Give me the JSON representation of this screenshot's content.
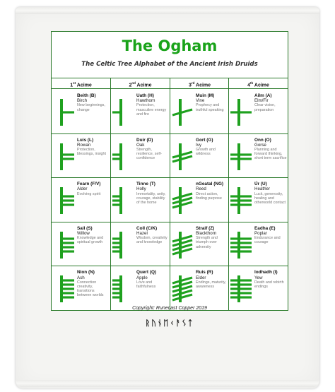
{
  "title": "The Ogham",
  "subtitle": "The Celtic Tree Alphabet of the Ancient Irish Druids",
  "headers": [
    {
      "num": "1",
      "sup": "st",
      "word": "Acime"
    },
    {
      "num": "2",
      "sup": "nd",
      "word": "Acime"
    },
    {
      "num": "3",
      "sup": "rd",
      "word": "Acime"
    },
    {
      "num": "4",
      "sup": "th",
      "word": "Acime"
    }
  ],
  "ink_color": "#1fa11f",
  "rows": [
    [
      {
        "name": "Beith (B)",
        "tree": "Birch",
        "desc": "New beginnings, change",
        "glyph": {
          "side": "right",
          "n": 1
        }
      },
      {
        "name": "Uath (H)",
        "tree": "Hawthorn",
        "desc": "Protection, masculine energy and fire",
        "glyph": {
          "side": "left",
          "n": 1
        }
      },
      {
        "name": "Muin (M)",
        "tree": "Vine",
        "desc": "Prophecy and truthful speaking",
        "glyph": {
          "side": "slant",
          "n": 1
        }
      },
      {
        "name": "Ailm (A)",
        "tree": "Elm/Fir",
        "desc": "Clear vision, preparation",
        "glyph": {
          "side": "cross",
          "n": 1
        }
      }
    ],
    [
      {
        "name": "Luis (L)",
        "tree": "Rowan",
        "desc": "Protection, blessings, insight",
        "glyph": {
          "side": "right",
          "n": 2
        }
      },
      {
        "name": "Duir (D)",
        "tree": "Oak",
        "desc": "Strength, resilience, self-confidence",
        "glyph": {
          "side": "left",
          "n": 2
        }
      },
      {
        "name": "Gort (G)",
        "tree": "Ivy",
        "desc": "Growth and wildness",
        "glyph": {
          "side": "slant",
          "n": 2
        }
      },
      {
        "name": "Onn (O)",
        "tree": "Gorse",
        "desc": "Planning and forward thinking, short term sacrifice",
        "glyph": {
          "side": "cross",
          "n": 2
        }
      }
    ],
    [
      {
        "name": "Fearn (F/V)",
        "tree": "Alder",
        "desc": "Evolving spirit",
        "glyph": {
          "side": "right",
          "n": 3
        }
      },
      {
        "name": "Tinne (T)",
        "tree": "Holly",
        "desc": "Immortality, unity, courage, stability of the home",
        "glyph": {
          "side": "left",
          "n": 3
        }
      },
      {
        "name": "nGeatal (NG)",
        "tree": "Reed",
        "desc": "Direct action, finding purpose",
        "glyph": {
          "side": "slant",
          "n": 3
        }
      },
      {
        "name": "Úr (U)",
        "tree": "Heather",
        "desc": "Luck, generosity, healing and otherworld contact",
        "glyph": {
          "side": "cross",
          "n": 3
        }
      }
    ],
    [
      {
        "name": "Sail (S)",
        "tree": "Willow",
        "desc": "Knowledge and spiritual growth",
        "glyph": {
          "side": "right",
          "n": 4
        }
      },
      {
        "name": "Coll (C/K)",
        "tree": "Hazel",
        "desc": "Wisdom, creativity and knowledge",
        "glyph": {
          "side": "left",
          "n": 4
        }
      },
      {
        "name": "Straif (Z)",
        "tree": "Blackthorn",
        "desc": "Strength and triumph over adversity",
        "glyph": {
          "side": "slant",
          "n": 4
        }
      },
      {
        "name": "Eadha (E)",
        "tree": "Poplar",
        "desc": "Endurance and courage",
        "glyph": {
          "side": "cross",
          "n": 4
        }
      }
    ],
    [
      {
        "name": "Nion (N)",
        "tree": "Ash",
        "desc": "Connection creativity, transitions between worlds",
        "glyph": {
          "side": "right",
          "n": 5
        }
      },
      {
        "name": "Quert (Q)",
        "tree": "Apple",
        "desc": "Love and faithfulness",
        "glyph": {
          "side": "left",
          "n": 5
        }
      },
      {
        "name": "Ruis (R)",
        "tree": "Elder",
        "desc": "Endings, maturity, awareness",
        "glyph": {
          "side": "slant",
          "n": 5
        }
      },
      {
        "name": "Iodhadh (I)",
        "tree": "Yew",
        "desc": "Death and rebirth endings",
        "glyph": {
          "side": "cross",
          "n": 5
        }
      }
    ]
  ],
  "copyright": "Copyright: Runecast Copper 2019",
  "logo_text": "RUNECAST"
}
